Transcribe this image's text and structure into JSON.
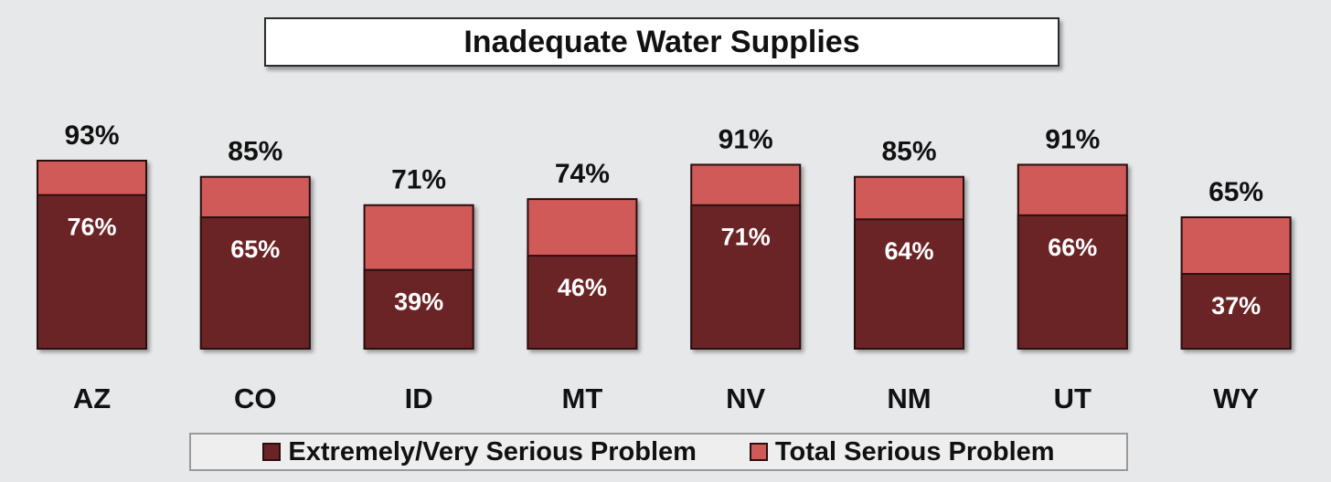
{
  "chart_data": {
    "type": "bar",
    "stacked": false,
    "title": "Inadequate Water Supplies",
    "categories": [
      "AZ",
      "CO",
      "ID",
      "MT",
      "NV",
      "NM",
      "UT",
      "WY"
    ],
    "series": [
      {
        "name": "Extremely/Very Serious Problem",
        "color": "#6b2426",
        "values": [
          76,
          65,
          39,
          46,
          71,
          64,
          66,
          37
        ],
        "labels": [
          "76%",
          "65%",
          "39%",
          "46%",
          "71%",
          "64%",
          "66%",
          "37%"
        ]
      },
      {
        "name": "Total Serious Problem",
        "color": "#d05a59",
        "values": [
          93,
          85,
          71,
          74,
          91,
          85,
          91,
          65
        ],
        "labels": [
          "93%",
          "85%",
          "71%",
          "74%",
          "91%",
          "85%",
          "91%",
          "65%"
        ]
      }
    ],
    "ylim": [
      0,
      100
    ],
    "grid": false,
    "legend_position": "bottom"
  }
}
